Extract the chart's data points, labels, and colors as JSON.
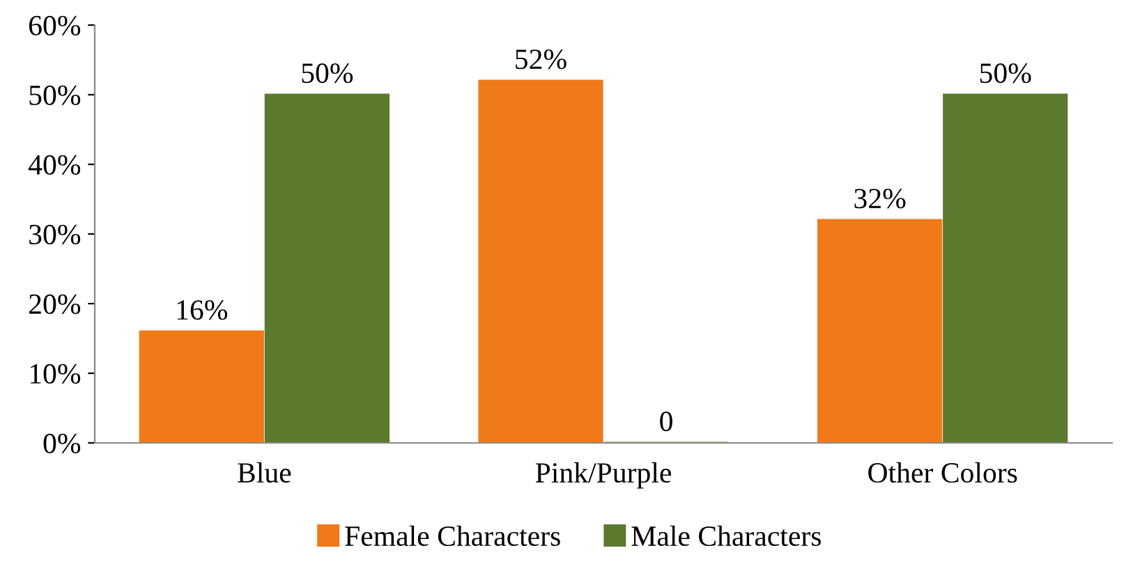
{
  "chart_data": {
    "type": "bar",
    "categories": [
      "Blue",
      "Pink/Purple",
      "Other Colors"
    ],
    "series": [
      {
        "name": "Female Characters",
        "color": "#f07a1a",
        "values": [
          16,
          52,
          32
        ],
        "value_labels": [
          "16%",
          "52%",
          "32%"
        ]
      },
      {
        "name": "Male Characters",
        "color": "#5b7a2e",
        "values": [
          50,
          0,
          50
        ],
        "value_labels": [
          "50%",
          "0",
          "50%"
        ]
      }
    ],
    "ylim": [
      0,
      60
    ],
    "yticks": [
      {
        "value": 0,
        "label": "0%"
      },
      {
        "value": 10,
        "label": "10%"
      },
      {
        "value": 20,
        "label": "20%"
      },
      {
        "value": 30,
        "label": "30%"
      },
      {
        "value": 40,
        "label": "40%"
      },
      {
        "value": 50,
        "label": "50%"
      },
      {
        "value": 60,
        "label": "60%"
      }
    ],
    "legend": "bottom",
    "grid": false
  }
}
